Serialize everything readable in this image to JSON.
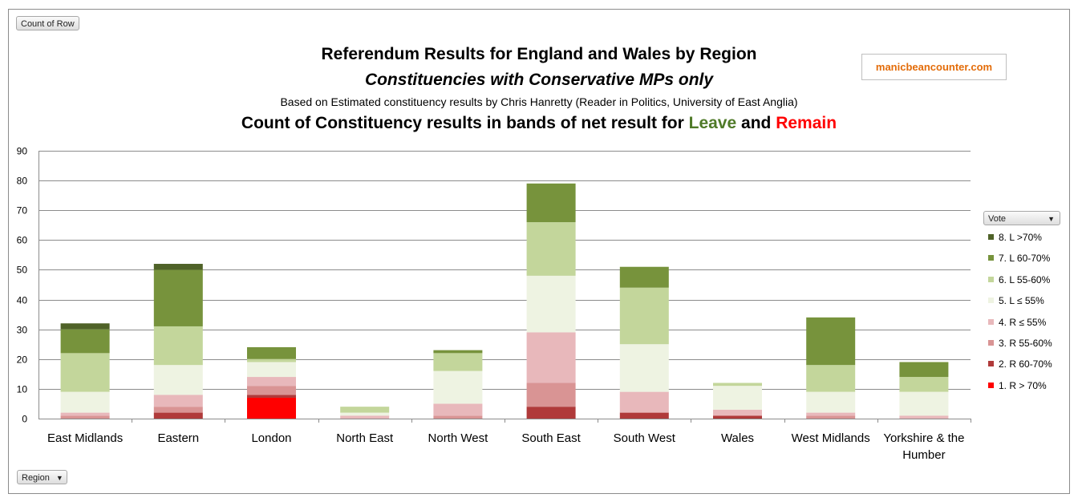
{
  "toolbar": {
    "count_button": "Count of Row",
    "region_button": "Region",
    "vote_button": "Vote"
  },
  "watermark": "manicbeancounter.com",
  "chart_data": {
    "type": "bar",
    "stacked": true,
    "title": "Referendum Results for England and Wales by Region",
    "subtitle": "Constituencies with Conservative MPs only",
    "source_note": "Based on Estimated constituency results by Chris Hanretty (Reader in Politics, University of East Anglia)",
    "heading": {
      "prefix": "Count of Constituency results in bands of net result for",
      "leave": "Leave",
      "joiner": "and",
      "remain": "Remain"
    },
    "ylim": [
      0,
      90
    ],
    "yticks": [
      0,
      10,
      20,
      30,
      40,
      50,
      60,
      70,
      80,
      90
    ],
    "grid": true,
    "legend_position": "right",
    "categories": [
      "East Midlands",
      "Eastern",
      "London",
      "North East",
      "North West",
      "South East",
      "South West",
      "Wales",
      "West Midlands",
      "Yorkshire & the Humber"
    ],
    "category_lines": [
      [
        "East Midlands"
      ],
      [
        "Eastern"
      ],
      [
        "London"
      ],
      [
        "North East"
      ],
      [
        "North West"
      ],
      [
        "South East"
      ],
      [
        "South West"
      ],
      [
        "Wales"
      ],
      [
        "West Midlands"
      ],
      [
        "Yorkshire & the",
        "Humber"
      ]
    ],
    "series": [
      {
        "name": "1. R > 70%",
        "color": "#ff0000",
        "values": [
          0,
          0,
          7,
          0,
          0,
          0,
          0,
          0,
          0,
          0
        ]
      },
      {
        "name": "2. R 60-70%",
        "color": "#b03a3a",
        "values": [
          0,
          2,
          1,
          0,
          0,
          4,
          2,
          1,
          0,
          0
        ]
      },
      {
        "name": "3. R 55-60%",
        "color": "#d99494",
        "values": [
          1,
          2,
          3,
          0,
          1,
          8,
          0,
          0,
          1,
          0
        ]
      },
      {
        "name": "4. R ≤ 55%",
        "color": "#e8b8bb",
        "values": [
          1,
          4,
          3,
          1,
          4,
          17,
          7,
          2,
          1,
          1
        ]
      },
      {
        "name": "5. L ≤ 55%",
        "color": "#eef3e2",
        "values": [
          7,
          10,
          5,
          1,
          11,
          19,
          16,
          8,
          7,
          8
        ]
      },
      {
        "name": "6. L 55-60%",
        "color": "#c3d69b",
        "values": [
          13,
          13,
          1,
          2,
          6,
          18,
          19,
          1,
          9,
          5
        ]
      },
      {
        "name": "7. L 60-70%",
        "color": "#77933c",
        "values": [
          8,
          19,
          4,
          0,
          1,
          13,
          7,
          0,
          16,
          5
        ]
      },
      {
        "name": "8. L >70%",
        "color": "#4f6228",
        "values": [
          2,
          2,
          0,
          0,
          0,
          0,
          0,
          0,
          0,
          0
        ]
      }
    ]
  }
}
